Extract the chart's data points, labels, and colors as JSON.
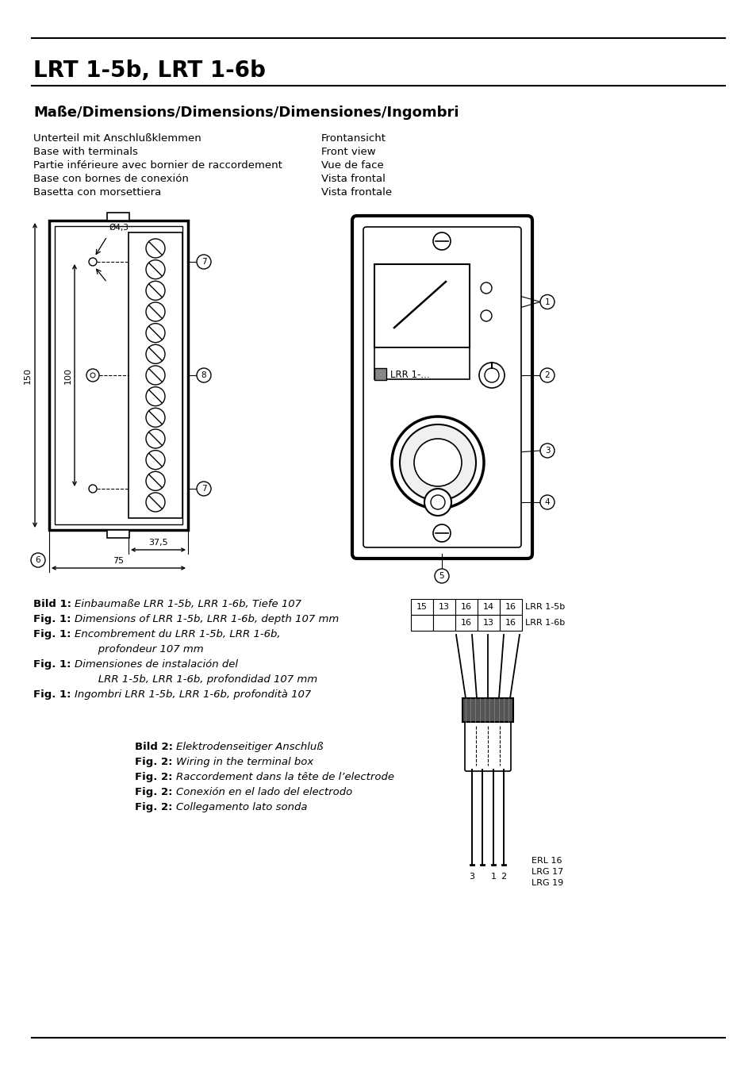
{
  "title": "LRT 1-5b, LRT 1-6b",
  "subtitle": "Maße/Dimensions/Dimensions/Dimensiones/Ingombri",
  "left_col_labels": [
    "Unterteil mit Anschlußklemmen",
    "Base with terminals",
    "Partie inférieure avec bornier de raccordement",
    "Base con bornes de conexión",
    "Basetta con morsettiera"
  ],
  "right_col_labels": [
    "Frontansicht",
    "Front view",
    "Vue de face",
    "Vista frontal",
    "Vista frontale"
  ],
  "background_color": "#ffffff",
  "text_color": "#000000"
}
